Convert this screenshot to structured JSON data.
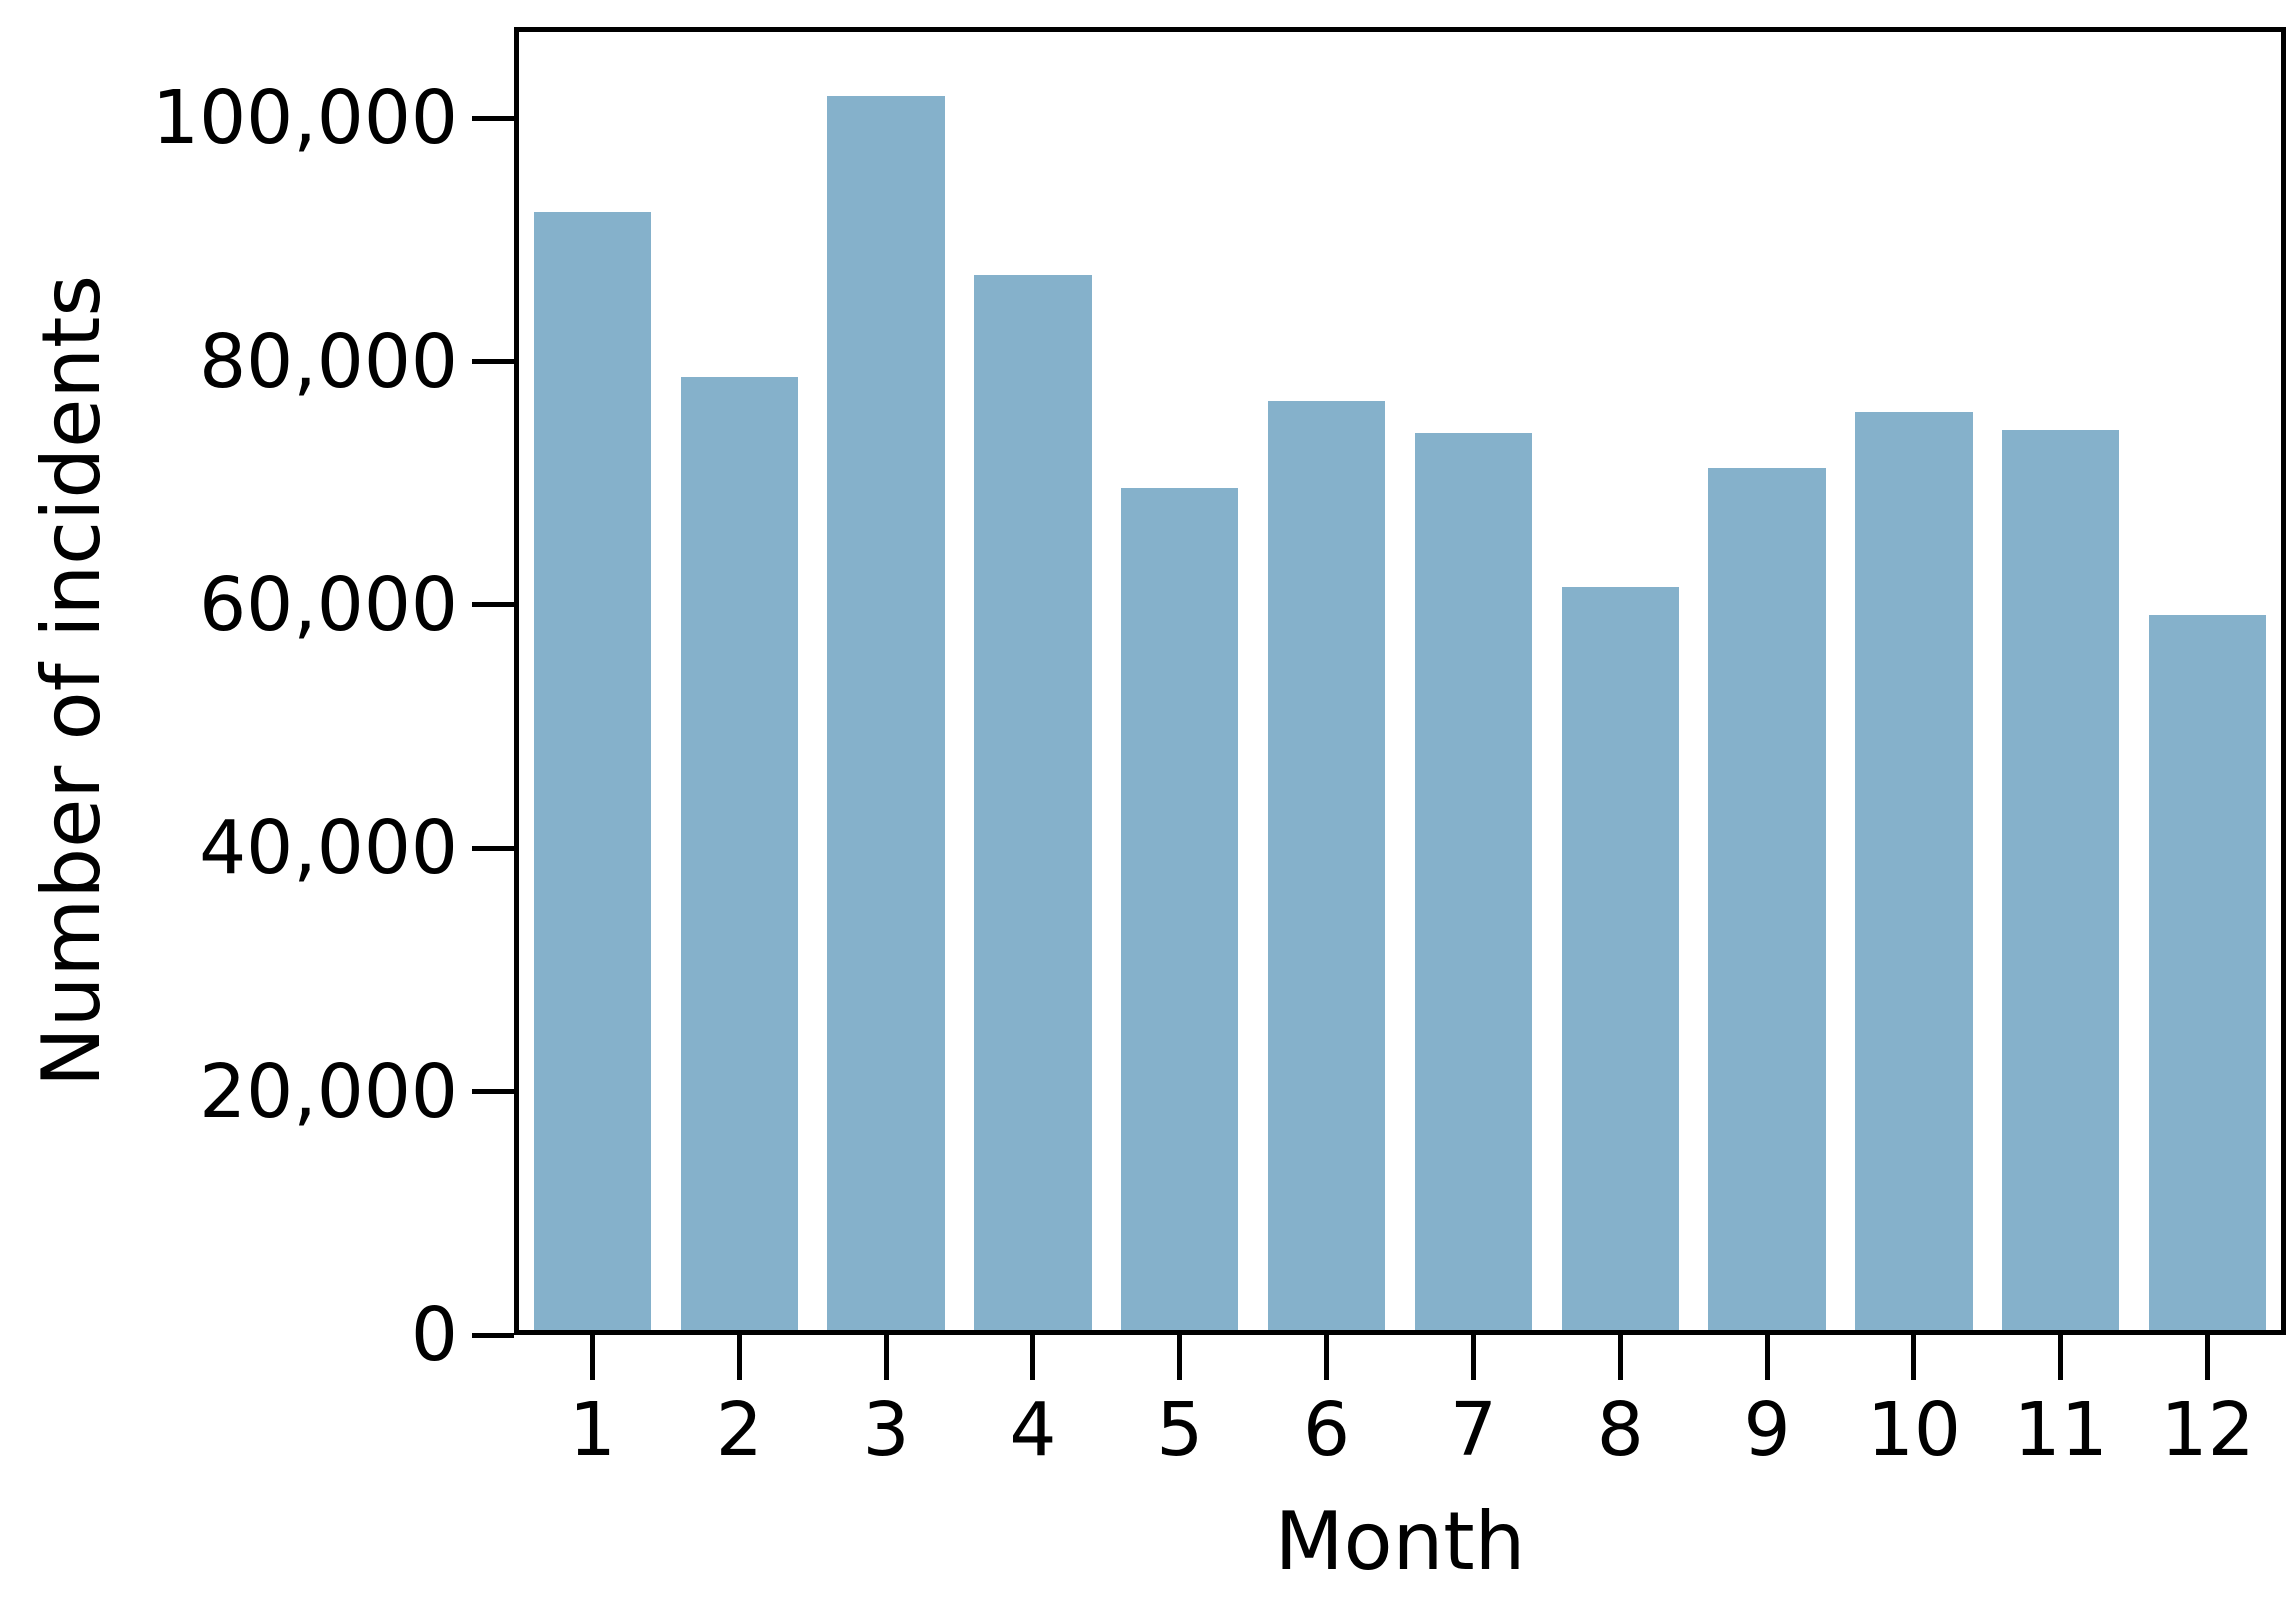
{
  "chart_data": {
    "type": "bar",
    "xlabel": "Month",
    "ylabel": "Number of incidents",
    "categories": [
      "1",
      "2",
      "3",
      "4",
      "5",
      "6",
      "7",
      "8",
      "9",
      "10",
      "11",
      "12"
    ],
    "values": [
      92600,
      78900,
      102200,
      87400,
      69700,
      76900,
      74300,
      61500,
      71400,
      76000,
      74500,
      59200
    ],
    "ylim": [
      0,
      107500
    ],
    "yticks": [
      {
        "value": 0,
        "label": "0"
      },
      {
        "value": 20000,
        "label": "20,000"
      },
      {
        "value": 40000,
        "label": "40,000"
      },
      {
        "value": 60000,
        "label": "60,000"
      },
      {
        "value": 80000,
        "label": "80,000"
      },
      {
        "value": 100000,
        "label": "100,000"
      }
    ],
    "grid": false,
    "legend_position": "none",
    "bar_width_fraction": 0.8,
    "bar_color": "#85B1CB",
    "axis_color": "#000000",
    "background_color": "#FFFFFF"
  }
}
